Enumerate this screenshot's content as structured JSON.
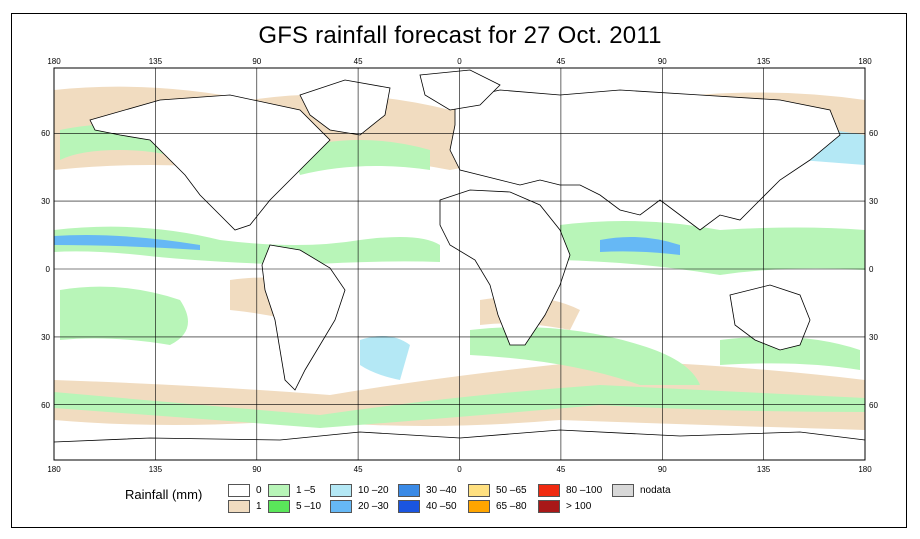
{
  "title": "GFS rainfall forecast for 27 Oct. 2011",
  "map": {
    "lon_ticks": [
      "180",
      "135",
      "90",
      "45",
      "0",
      "45",
      "90",
      "135",
      "180"
    ],
    "lat_ticks": [
      "60",
      "30",
      "0",
      "30",
      "60"
    ],
    "ocean_color": "#ffffff",
    "land_stroke": "#000000"
  },
  "legend": {
    "title": "Rainfall (mm)",
    "items": [
      {
        "label": "0",
        "color": "#ffffff"
      },
      {
        "label": "1",
        "color": "#f1dcc0"
      },
      {
        "label": "1 –5",
        "color": "#b8f5b8"
      },
      {
        "label": "5 –10",
        "color": "#5ae65a"
      },
      {
        "label": "10 –20",
        "color": "#b4e8f5"
      },
      {
        "label": "20 –30",
        "color": "#66b8f5"
      },
      {
        "label": "30 –40",
        "color": "#3a8ae6"
      },
      {
        "label": "40 –50",
        "color": "#1a55e0"
      },
      {
        "label": "50 –65",
        "color": "#ffe080"
      },
      {
        "label": "65 –80",
        "color": "#ffa500"
      },
      {
        "label": "80 –100",
        "color": "#f02a10"
      },
      {
        "label": "> 100",
        "color": "#a81818"
      },
      {
        "label": "nodata",
        "color": "#d8d8d8"
      }
    ]
  }
}
